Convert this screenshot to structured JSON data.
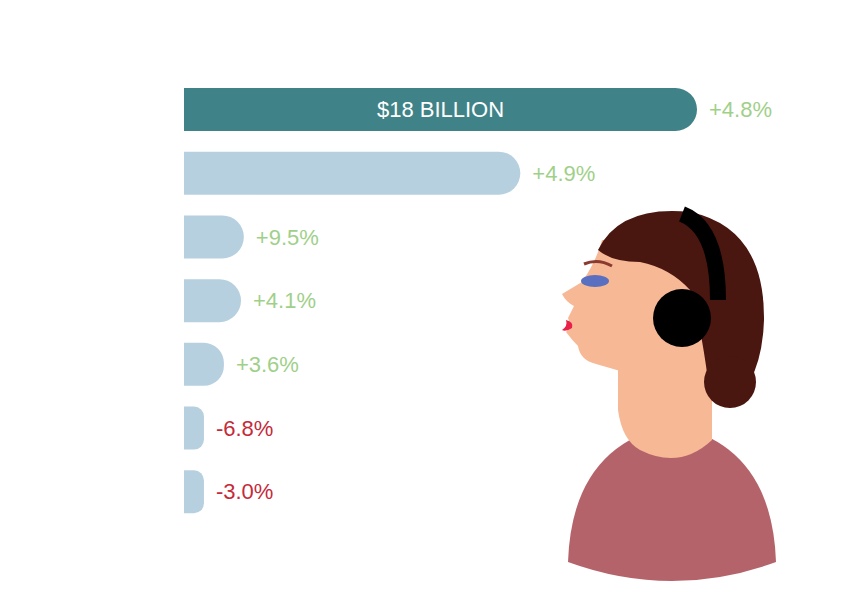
{
  "chart_data": {
    "type": "bar",
    "orientation": "horizontal",
    "categories": [
      null,
      null,
      null,
      null,
      null,
      null,
      null
    ],
    "values": [
      18,
      11.8,
      2.1,
      2.0,
      1.4,
      0.7,
      0.7
    ],
    "value_labels": [
      "$18 BILLION",
      null,
      null,
      null,
      null,
      null,
      null
    ],
    "changes": [
      4.8,
      4.9,
      9.5,
      4.1,
      3.6,
      -6.8,
      -3.0
    ],
    "change_labels": [
      "+4.8%",
      "+4.9%",
      "+9.5%",
      "+4.1%",
      "+3.6%",
      "-6.8%",
      "-3.0%"
    ],
    "colors": [
      "#3f8389",
      "#b7d0df",
      "#b7d0df",
      "#b7d0df",
      "#b7d0df",
      "#b7d0df",
      "#b7d0df"
    ],
    "xlim": [
      0,
      18
    ],
    "tick_labels": false,
    "grid": false
  }
}
